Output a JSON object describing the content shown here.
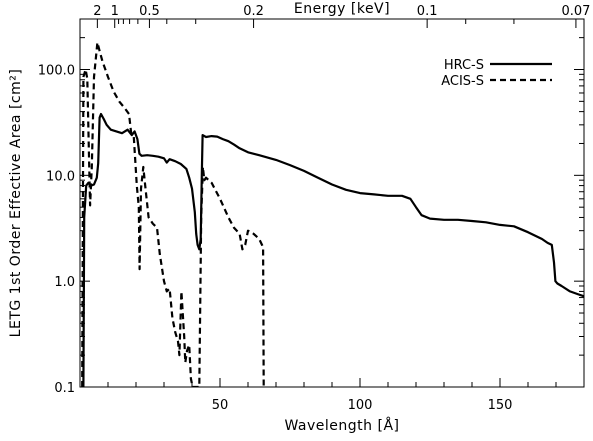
{
  "chart_data": {
    "type": "line",
    "title": "",
    "xlabel": "Wavelength [Å]",
    "ylabel": "LETG 1st Order Effective Area [cm²]",
    "top_axis_label": "Energy [keV]",
    "xlim": [
      0,
      180
    ],
    "ylim": [
      0.1,
      300
    ],
    "y_scale": "log",
    "grid": false,
    "legend_position": "top-right",
    "x_ticks": [
      50,
      100,
      150
    ],
    "x_tick_labels": [
      "50",
      "100",
      "150"
    ],
    "y_ticks": [
      0.1,
      1.0,
      10.0,
      100.0
    ],
    "y_tick_labels": [
      "0.1",
      "1.0",
      "10.0",
      "100.0"
    ],
    "top_ticks_keV": [
      2,
      1,
      0.5,
      0.2,
      0.1,
      0.07
    ],
    "top_tick_labels": [
      "2",
      "1",
      "0.5",
      "0.2",
      "0.1",
      "0.07"
    ],
    "series": [
      {
        "name": "HRC-S",
        "style": "solid",
        "color": "#000000",
        "points": [
          [
            1.2,
            0.1
          ],
          [
            1.5,
            4.0
          ],
          [
            2.2,
            8.0
          ],
          [
            3.0,
            8.5
          ],
          [
            4.0,
            8.0
          ],
          [
            5.0,
            8.2
          ],
          [
            6.0,
            9.5
          ],
          [
            6.5,
            13
          ],
          [
            7.0,
            35
          ],
          [
            7.5,
            38
          ],
          [
            8.5,
            34
          ],
          [
            9.5,
            30
          ],
          [
            11,
            27
          ],
          [
            13,
            26
          ],
          [
            15,
            25
          ],
          [
            17,
            27
          ],
          [
            18.5,
            24
          ],
          [
            19.5,
            26
          ],
          [
            20.5,
            22
          ],
          [
            21.2,
            16
          ],
          [
            22,
            15.3
          ],
          [
            24,
            15.5
          ],
          [
            26,
            15.3
          ],
          [
            28,
            15.0
          ],
          [
            30,
            14.5
          ],
          [
            31,
            13.2
          ],
          [
            32,
            14.2
          ],
          [
            34,
            13.6
          ],
          [
            36,
            12.8
          ],
          [
            38,
            11.5
          ],
          [
            39,
            9.5
          ],
          [
            40,
            7.5
          ],
          [
            41,
            4.5
          ],
          [
            41.5,
            2.8
          ],
          [
            42,
            2.2
          ],
          [
            42.6,
            2.0
          ],
          [
            43.1,
            2.5
          ],
          [
            43.5,
            10
          ],
          [
            43.8,
            24
          ],
          [
            45,
            23
          ],
          [
            47,
            23.5
          ],
          [
            49,
            23.2
          ],
          [
            51,
            22
          ],
          [
            53,
            21
          ],
          [
            55,
            19.5
          ],
          [
            57,
            18
          ],
          [
            60,
            16.5
          ],
          [
            64,
            15.5
          ],
          [
            70,
            14
          ],
          [
            75,
            12.5
          ],
          [
            80,
            11
          ],
          [
            85,
            9.5
          ],
          [
            90,
            8.2
          ],
          [
            95,
            7.3
          ],
          [
            100,
            6.8
          ],
          [
            105,
            6.6
          ],
          [
            110,
            6.4
          ],
          [
            115,
            6.4
          ],
          [
            118,
            6.0
          ],
          [
            120,
            5.0
          ],
          [
            122,
            4.2
          ],
          [
            125,
            3.9
          ],
          [
            130,
            3.8
          ],
          [
            135,
            3.8
          ],
          [
            140,
            3.7
          ],
          [
            145,
            3.6
          ],
          [
            150,
            3.4
          ],
          [
            155,
            3.3
          ],
          [
            160,
            2.9
          ],
          [
            165,
            2.5
          ],
          [
            167,
            2.3
          ],
          [
            168.5,
            2.2
          ],
          [
            169.3,
            1.5
          ],
          [
            169.8,
            1.0
          ],
          [
            170.5,
            0.95
          ],
          [
            172,
            0.9
          ],
          [
            175,
            0.8
          ],
          [
            178,
            0.75
          ],
          [
            180,
            0.72
          ]
        ]
      },
      {
        "name": "ACIS-S",
        "style": "dashed",
        "color": "#000000",
        "points": [
          [
            0.8,
            0.1
          ],
          [
            1.2,
            85
          ],
          [
            2.0,
            100
          ],
          [
            2.6,
            82
          ],
          [
            3.2,
            15
          ],
          [
            3.6,
            5.2
          ],
          [
            4.2,
            12
          ],
          [
            5.0,
            85
          ],
          [
            6.2,
            180
          ],
          [
            7.0,
            150
          ],
          [
            8.0,
            120
          ],
          [
            10,
            85
          ],
          [
            12,
            62
          ],
          [
            14,
            50
          ],
          [
            16,
            43
          ],
          [
            17.5,
            38
          ],
          [
            18.3,
            25
          ],
          [
            19.2,
            23
          ],
          [
            20.3,
            8.0
          ],
          [
            21,
            5.0
          ],
          [
            21.3,
            1.3
          ],
          [
            21.8,
            7.5
          ],
          [
            22.6,
            12
          ],
          [
            23.3,
            8.0
          ],
          [
            24.5,
            4.0
          ],
          [
            26,
            3.5
          ],
          [
            27.5,
            3.2
          ],
          [
            28.5,
            1.8
          ],
          [
            30,
            1.0
          ],
          [
            31,
            0.8
          ],
          [
            32,
            0.85
          ],
          [
            33,
            0.45
          ],
          [
            34,
            0.33
          ],
          [
            35,
            0.27
          ],
          [
            35.5,
            0.2
          ],
          [
            36.2,
            0.8
          ],
          [
            37.2,
            0.3
          ],
          [
            37.6,
            0.17
          ],
          [
            38.2,
            0.22
          ],
          [
            39,
            0.25
          ],
          [
            39.6,
            0.12
          ],
          [
            40.2,
            0.1
          ],
          [
            41,
            0.1
          ],
          [
            41.8,
            0.1
          ],
          [
            42.6,
            0.1
          ],
          [
            43.3,
            4.0
          ],
          [
            43.9,
            12
          ],
          [
            44.4,
            9.0
          ],
          [
            45,
            9.5
          ],
          [
            47,
            8.5
          ],
          [
            50,
            6.0
          ],
          [
            53,
            4.0
          ],
          [
            55,
            3.2
          ],
          [
            57,
            2.8
          ],
          [
            58,
            2.0
          ],
          [
            59,
            2.2
          ],
          [
            60,
            3.0
          ],
          [
            62,
            2.8
          ],
          [
            64,
            2.5
          ],
          [
            65,
            2.2
          ],
          [
            65.4,
            2.1
          ],
          [
            65.6,
            0.1
          ]
        ]
      }
    ]
  }
}
